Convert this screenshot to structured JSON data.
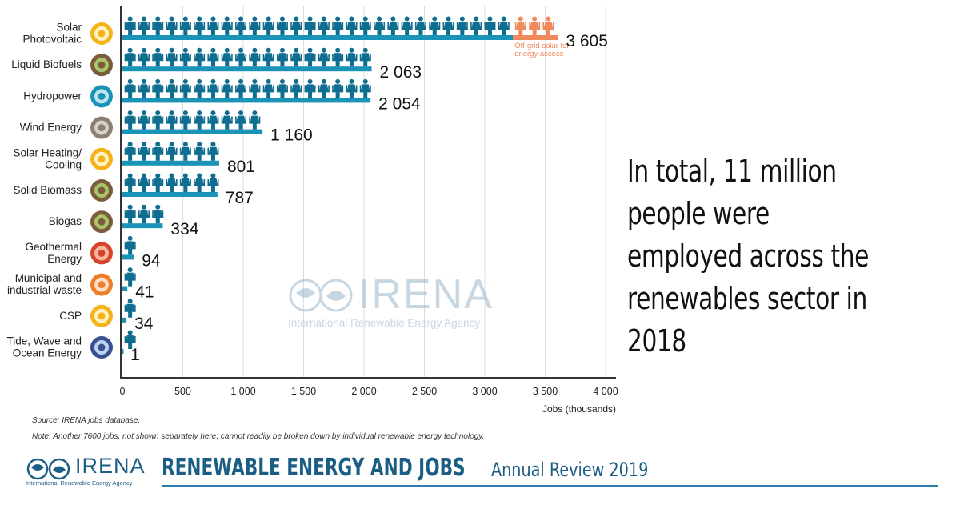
{
  "chart_data": {
    "type": "bar",
    "orientation": "horizontal",
    "categories": [
      "Solar Photovoltaic",
      "Liquid Biofuels",
      "Hydropower",
      "Wind Energy",
      "Solar Heating/ Cooling",
      "Solid Biomass",
      "Biogas",
      "Geothermal Energy",
      "Municipal and industrial waste",
      "CSP",
      "Tide, Wave and Ocean Energy"
    ],
    "category_lines": [
      [
        "Solar",
        "Photovoltaic"
      ],
      [
        "Liquid Biofuels"
      ],
      [
        "Hydropower"
      ],
      [
        "Wind Energy"
      ],
      [
        "Solar Heating/",
        "Cooling"
      ],
      [
        "Solid Biomass"
      ],
      [
        "Biogas"
      ],
      [
        "Geothermal",
        "Energy"
      ],
      [
        "Municipal and",
        "industrial waste"
      ],
      [
        "CSP"
      ],
      [
        "Tide, Wave and",
        "Ocean Energy"
      ]
    ],
    "values": [
      3605,
      2063,
      2054,
      1160,
      801,
      787,
      334,
      94,
      41,
      34,
      1
    ],
    "value_labels": [
      "3 605",
      "2 063",
      "2 054",
      "1 160",
      "801",
      "787",
      "334",
      "94",
      "41",
      "34",
      "1"
    ],
    "offgrid_value": 372,
    "offgrid_label": [
      "Off-grid solar for",
      "energy access"
    ],
    "xlabel": "Jobs (thousands)",
    "xlim": [
      0,
      4000
    ],
    "xticks": [
      0,
      500,
      1000,
      1500,
      2000,
      2500,
      3000,
      3500,
      4000
    ],
    "xtick_labels": [
      "0",
      "500",
      "1 000",
      "1 500",
      "2 000",
      "2 500",
      "3 000",
      "3 500",
      "4 000"
    ],
    "grid": "vertical",
    "colors": {
      "bar": "#1a93b8",
      "person": "#0f6d8f",
      "offgrid": "#f08a5d",
      "grid": "#dcdcdc",
      "axis": "#333333"
    },
    "icons": [
      "sun-icon",
      "leaf-drop-icon",
      "water-drop-icon",
      "wind-turbine-icon",
      "sun-icon",
      "leaf-drop-icon",
      "leaf-drop-icon",
      "volcano-icon",
      "waste-icon",
      "sun-icon",
      "wave-icon"
    ]
  },
  "watermark": {
    "name": "IRENA",
    "subtitle": "International Renewable Energy Agency"
  },
  "headline": "In total, 11 million people were employed across the renewables sector in 2018",
  "source": "Source: IRENA jobs database.",
  "note": "Note: Another 7600 jobs, not shown separately here, cannot readily be broken down by individual renewable energy technology.",
  "footer": {
    "logo_text": "IRENA",
    "agency": "International Renewable Energy Agency",
    "title": "RENEWABLE ENERGY AND JOBS",
    "subtitle": "Annual Review 2019"
  }
}
